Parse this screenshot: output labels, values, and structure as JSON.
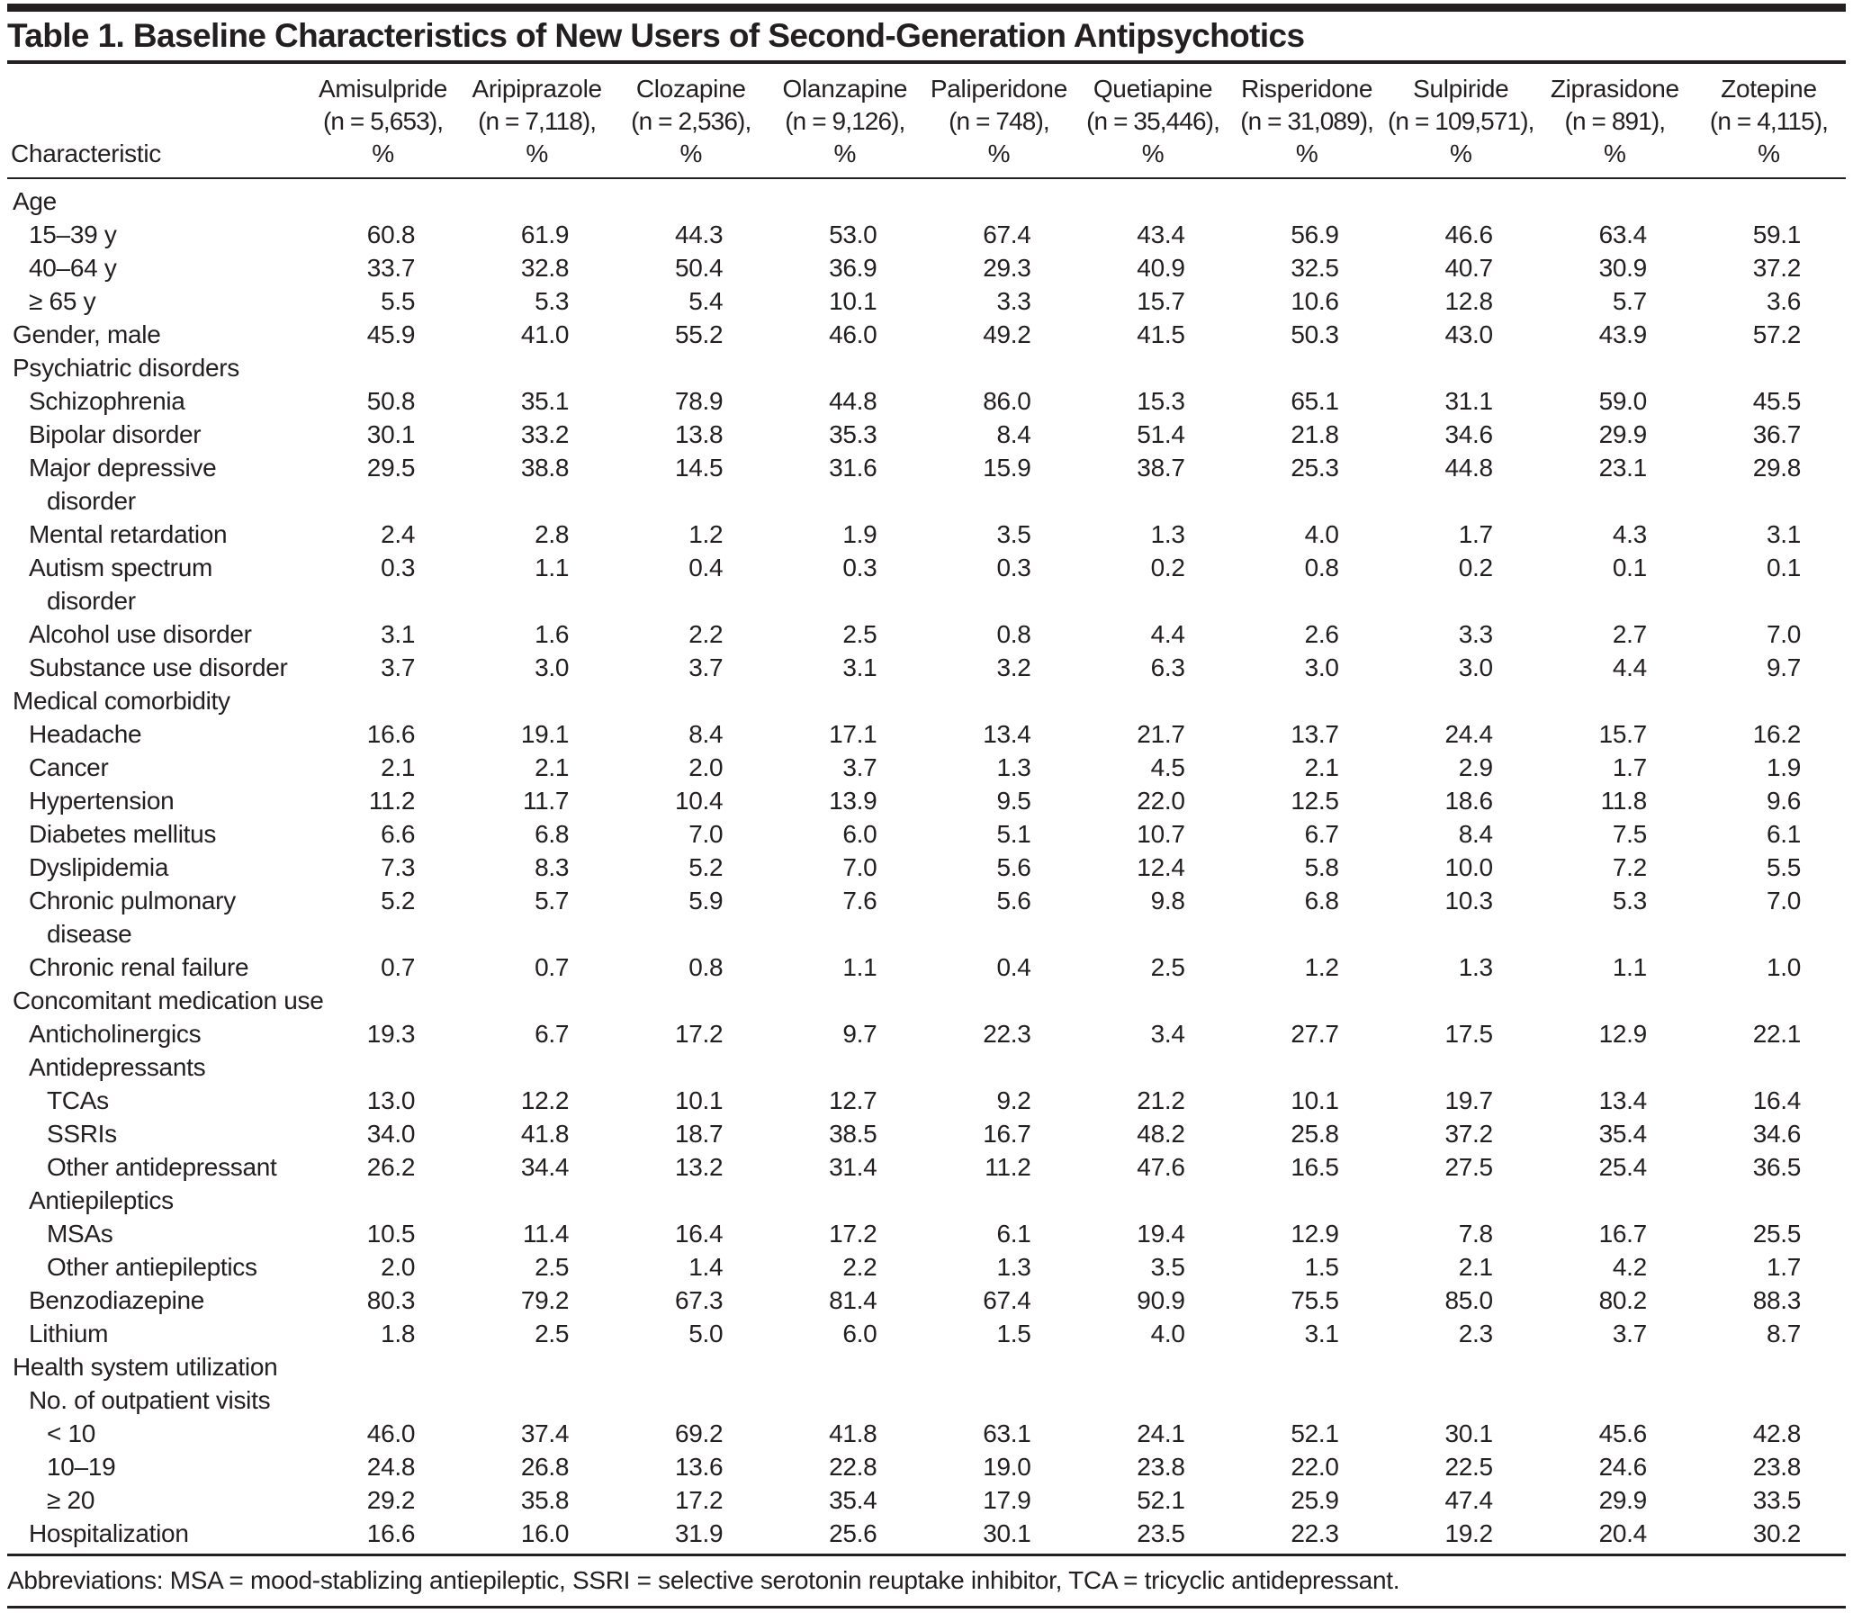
{
  "title": "Table 1. Baseline Characteristics of New Users of Second-Generation Antipsychotics",
  "footnote": "Abbreviations: MSA = mood-stablizing antiepileptic, SSRI = selective serotonin reuptake inhibitor, TCA = tricyclic antidepressant.",
  "colors": {
    "text": "#231f20",
    "rule": "#231f20",
    "background": "#ffffff"
  },
  "table": {
    "characteristic_header": "Characteristic",
    "columns": [
      {
        "name": "Amisulpride",
        "n": "(n = 5,653),",
        "pct": "%"
      },
      {
        "name": "Aripiprazole",
        "n": "(n = 7,118),",
        "pct": "%"
      },
      {
        "name": "Clozapine",
        "n": "(n = 2,536),",
        "pct": "%"
      },
      {
        "name": "Olanzapine",
        "n": "(n = 9,126),",
        "pct": "%"
      },
      {
        "name": "Paliperidone",
        "n": "(n = 748),",
        "pct": "%"
      },
      {
        "name": "Quetiapine",
        "n": "(n = 35,446),",
        "pct": "%"
      },
      {
        "name": "Risperidone",
        "n": "(n = 31,089),",
        "pct": "%"
      },
      {
        "name": "Sulpiride",
        "n": "(n = 109,571),",
        "pct": "%"
      },
      {
        "name": "Ziprasidone",
        "n": "(n = 891),",
        "pct": "%"
      },
      {
        "name": "Zotepine",
        "n": "(n = 4,115),",
        "pct": "%"
      }
    ],
    "rows": [
      {
        "label": "Age",
        "indent": 0,
        "values": []
      },
      {
        "label": "15–39 y",
        "indent": 1,
        "values": [
          "60.8",
          "61.9",
          "44.3",
          "53.0",
          "67.4",
          "43.4",
          "56.9",
          "46.6",
          "63.4",
          "59.1"
        ]
      },
      {
        "label": "40–64 y",
        "indent": 1,
        "values": [
          "33.7",
          "32.8",
          "50.4",
          "36.9",
          "29.3",
          "40.9",
          "32.5",
          "40.7",
          "30.9",
          "37.2"
        ]
      },
      {
        "label": "≥ 65 y",
        "indent": 1,
        "values": [
          "5.5",
          "5.3",
          "5.4",
          "10.1",
          "3.3",
          "15.7",
          "10.6",
          "12.8",
          "5.7",
          "3.6"
        ]
      },
      {
        "label": "Gender, male",
        "indent": 0,
        "values": [
          "45.9",
          "41.0",
          "55.2",
          "46.0",
          "49.2",
          "41.5",
          "50.3",
          "43.0",
          "43.9",
          "57.2"
        ]
      },
      {
        "label": "Psychiatric disorders",
        "indent": 0,
        "values": []
      },
      {
        "label": "Schizophrenia",
        "indent": 1,
        "values": [
          "50.8",
          "35.1",
          "78.9",
          "44.8",
          "86.0",
          "15.3",
          "65.1",
          "31.1",
          "59.0",
          "45.5"
        ]
      },
      {
        "label": "Bipolar disorder",
        "indent": 1,
        "values": [
          "30.1",
          "33.2",
          "13.8",
          "35.3",
          "8.4",
          "51.4",
          "21.8",
          "34.6",
          "29.9",
          "36.7"
        ]
      },
      {
        "label": "Major depressive\ndisorder",
        "indent": 1,
        "values": [
          "29.5",
          "38.8",
          "14.5",
          "31.6",
          "15.9",
          "38.7",
          "25.3",
          "44.8",
          "23.1",
          "29.8"
        ]
      },
      {
        "label": "Mental retardation",
        "indent": 1,
        "values": [
          "2.4",
          "2.8",
          "1.2",
          "1.9",
          "3.5",
          "1.3",
          "4.0",
          "1.7",
          "4.3",
          "3.1"
        ]
      },
      {
        "label": "Autism spectrum\ndisorder",
        "indent": 1,
        "values": [
          "0.3",
          "1.1",
          "0.4",
          "0.3",
          "0.3",
          "0.2",
          "0.8",
          "0.2",
          "0.1",
          "0.1"
        ]
      },
      {
        "label": "Alcohol use disorder",
        "indent": 1,
        "values": [
          "3.1",
          "1.6",
          "2.2",
          "2.5",
          "0.8",
          "4.4",
          "2.6",
          "3.3",
          "2.7",
          "7.0"
        ]
      },
      {
        "label": "Substance use disorder",
        "indent": 1,
        "values": [
          "3.7",
          "3.0",
          "3.7",
          "3.1",
          "3.2",
          "6.3",
          "3.0",
          "3.0",
          "4.4",
          "9.7"
        ]
      },
      {
        "label": "Medical comorbidity",
        "indent": 0,
        "values": []
      },
      {
        "label": "Headache",
        "indent": 1,
        "values": [
          "16.6",
          "19.1",
          "8.4",
          "17.1",
          "13.4",
          "21.7",
          "13.7",
          "24.4",
          "15.7",
          "16.2"
        ]
      },
      {
        "label": "Cancer",
        "indent": 1,
        "values": [
          "2.1",
          "2.1",
          "2.0",
          "3.7",
          "1.3",
          "4.5",
          "2.1",
          "2.9",
          "1.7",
          "1.9"
        ]
      },
      {
        "label": "Hypertension",
        "indent": 1,
        "values": [
          "11.2",
          "11.7",
          "10.4",
          "13.9",
          "9.5",
          "22.0",
          "12.5",
          "18.6",
          "11.8",
          "9.6"
        ]
      },
      {
        "label": "Diabetes mellitus",
        "indent": 1,
        "values": [
          "6.6",
          "6.8",
          "7.0",
          "6.0",
          "5.1",
          "10.7",
          "6.7",
          "8.4",
          "7.5",
          "6.1"
        ]
      },
      {
        "label": "Dyslipidemia",
        "indent": 1,
        "values": [
          "7.3",
          "8.3",
          "5.2",
          "7.0",
          "5.6",
          "12.4",
          "5.8",
          "10.0",
          "7.2",
          "5.5"
        ]
      },
      {
        "label": "Chronic pulmonary\ndisease",
        "indent": 1,
        "values": [
          "5.2",
          "5.7",
          "5.9",
          "7.6",
          "5.6",
          "9.8",
          "6.8",
          "10.3",
          "5.3",
          "7.0"
        ]
      },
      {
        "label": "Chronic renal failure",
        "indent": 1,
        "values": [
          "0.7",
          "0.7",
          "0.8",
          "1.1",
          "0.4",
          "2.5",
          "1.2",
          "1.3",
          "1.1",
          "1.0"
        ]
      },
      {
        "label": "Concomitant medication use",
        "indent": 0,
        "values": []
      },
      {
        "label": "Anticholinergics",
        "indent": 1,
        "values": [
          "19.3",
          "6.7",
          "17.2",
          "9.7",
          "22.3",
          "3.4",
          "27.7",
          "17.5",
          "12.9",
          "22.1"
        ]
      },
      {
        "label": "Antidepressants",
        "indent": 1,
        "values": []
      },
      {
        "label": "TCAs",
        "indent": 2,
        "values": [
          "13.0",
          "12.2",
          "10.1",
          "12.7",
          "9.2",
          "21.2",
          "10.1",
          "19.7",
          "13.4",
          "16.4"
        ]
      },
      {
        "label": "SSRIs",
        "indent": 2,
        "values": [
          "34.0",
          "41.8",
          "18.7",
          "38.5",
          "16.7",
          "48.2",
          "25.8",
          "37.2",
          "35.4",
          "34.6"
        ]
      },
      {
        "label": "Other antidepressant",
        "indent": 2,
        "values": [
          "26.2",
          "34.4",
          "13.2",
          "31.4",
          "11.2",
          "47.6",
          "16.5",
          "27.5",
          "25.4",
          "36.5"
        ]
      },
      {
        "label": "Antiepileptics",
        "indent": 1,
        "values": []
      },
      {
        "label": "MSAs",
        "indent": 2,
        "values": [
          "10.5",
          "11.4",
          "16.4",
          "17.2",
          "6.1",
          "19.4",
          "12.9",
          "7.8",
          "16.7",
          "25.5"
        ]
      },
      {
        "label": "Other antiepileptics",
        "indent": 2,
        "values": [
          "2.0",
          "2.5",
          "1.4",
          "2.2",
          "1.3",
          "3.5",
          "1.5",
          "2.1",
          "4.2",
          "1.7"
        ]
      },
      {
        "label": "Benzodiazepine",
        "indent": 1,
        "values": [
          "80.3",
          "79.2",
          "67.3",
          "81.4",
          "67.4",
          "90.9",
          "75.5",
          "85.0",
          "80.2",
          "88.3"
        ]
      },
      {
        "label": "Lithium",
        "indent": 1,
        "values": [
          "1.8",
          "2.5",
          "5.0",
          "6.0",
          "1.5",
          "4.0",
          "3.1",
          "2.3",
          "3.7",
          "8.7"
        ]
      },
      {
        "label": "Health system utilization",
        "indent": 0,
        "values": []
      },
      {
        "label": "No. of outpatient visits",
        "indent": 1,
        "values": []
      },
      {
        "label": "< 10",
        "indent": 2,
        "values": [
          "46.0",
          "37.4",
          "69.2",
          "41.8",
          "63.1",
          "24.1",
          "52.1",
          "30.1",
          "45.6",
          "42.8"
        ]
      },
      {
        "label": "10–19",
        "indent": 2,
        "values": [
          "24.8",
          "26.8",
          "13.6",
          "22.8",
          "19.0",
          "23.8",
          "22.0",
          "22.5",
          "24.6",
          "23.8"
        ]
      },
      {
        "label": "≥ 20",
        "indent": 2,
        "values": [
          "29.2",
          "35.8",
          "17.2",
          "35.4",
          "17.9",
          "52.1",
          "25.9",
          "47.4",
          "29.9",
          "33.5"
        ]
      },
      {
        "label": "Hospitalization",
        "indent": 1,
        "values": [
          "16.6",
          "16.0",
          "31.9",
          "25.6",
          "30.1",
          "23.5",
          "22.3",
          "19.2",
          "20.4",
          "30.2"
        ]
      }
    ]
  }
}
